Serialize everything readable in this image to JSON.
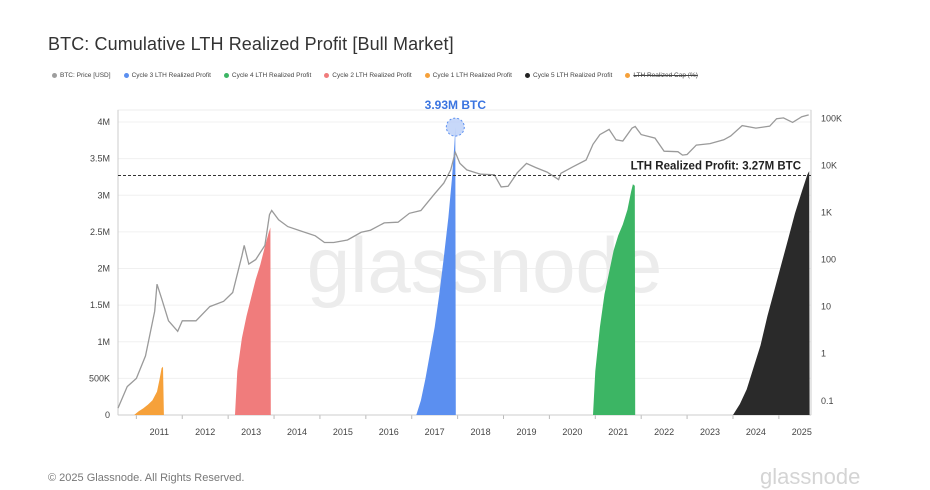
{
  "title": "BTC: Cumulative LTH Realized Profit [Bull Market]",
  "legend": [
    {
      "label": "BTC: Price [USD]",
      "color": "#9e9e9e"
    },
    {
      "label": "Cycle 3 LTH Realized Profit",
      "color": "#5b8ff0"
    },
    {
      "label": "Cycle 4 LTH Realized Profit",
      "color": "#3cb564"
    },
    {
      "label": "Cycle 2 LTH Realized Profit",
      "color": "#f07c7c"
    },
    {
      "label": "Cycle 1 LTH Realized Profit",
      "color": "#f6a13a"
    },
    {
      "label": "Cycle 5 LTH Realized Profit",
      "color": "#222222"
    },
    {
      "label": "LTH Realized Cap (%)",
      "color": "#f6a13a",
      "struck": true
    }
  ],
  "annotations": {
    "peak_label": "3.93M BTC",
    "threshold_label": "LTH Realized Profit: 3.27M BTC"
  },
  "watermark": "glassnode",
  "footer": {
    "copyright": "© 2025 Glassnode. All Rights Reserved.",
    "logo": "glassnode"
  },
  "chart_data": {
    "type": "area",
    "title": "BTC: Cumulative LTH Realized Profit [Bull Market]",
    "x_ticks": [
      "2011",
      "2012",
      "2013",
      "2014",
      "2015",
      "2016",
      "2017",
      "2018",
      "2019",
      "2020",
      "2021",
      "2022",
      "2023",
      "2024",
      "2025"
    ],
    "y_left_ticks": [
      "0",
      "500K",
      "1M",
      "1.5M",
      "2M",
      "2.5M",
      "3M",
      "3.5M",
      "4M"
    ],
    "y_left_range": [
      0,
      4000000
    ],
    "y_right_ticks": [
      "0.1",
      "1",
      "10",
      "100",
      "1K",
      "10K",
      "100K"
    ],
    "y_right_scale": "log",
    "y_right_range": [
      0.05,
      150000
    ],
    "x_range": [
      2010.6,
      2025.7
    ],
    "threshold": 3270000,
    "peak": {
      "x": 2017.95,
      "y": 3930000
    },
    "series": [
      {
        "name": "Cycle 1 LTH Realized Profit",
        "color": "#f6a13a",
        "points": [
          [
            2010.95,
            0
          ],
          [
            2011.05,
            50000
          ],
          [
            2011.15,
            90000
          ],
          [
            2011.25,
            140000
          ],
          [
            2011.35,
            200000
          ],
          [
            2011.45,
            320000
          ],
          [
            2011.5,
            470000
          ],
          [
            2011.55,
            640000
          ],
          [
            2011.58,
            660000
          ],
          [
            2011.6,
            0
          ]
        ]
      },
      {
        "name": "Cycle 2 LTH Realized Profit",
        "color": "#f07c7c",
        "points": [
          [
            2013.15,
            0
          ],
          [
            2013.2,
            600000
          ],
          [
            2013.3,
            1050000
          ],
          [
            2013.4,
            1350000
          ],
          [
            2013.5,
            1600000
          ],
          [
            2013.6,
            1850000
          ],
          [
            2013.7,
            2050000
          ],
          [
            2013.8,
            2300000
          ],
          [
            2013.88,
            2480000
          ],
          [
            2013.92,
            2560000
          ],
          [
            2013.93,
            0
          ]
        ]
      },
      {
        "name": "Cycle 3 LTH Realized Profit",
        "color": "#5b8ff0",
        "points": [
          [
            2017.1,
            0
          ],
          [
            2017.2,
            200000
          ],
          [
            2017.3,
            500000
          ],
          [
            2017.4,
            850000
          ],
          [
            2017.5,
            1200000
          ],
          [
            2017.6,
            1650000
          ],
          [
            2017.7,
            2150000
          ],
          [
            2017.8,
            2700000
          ],
          [
            2017.88,
            3250000
          ],
          [
            2017.93,
            3700000
          ],
          [
            2017.95,
            3930000
          ],
          [
            2017.96,
            0
          ]
        ]
      },
      {
        "name": "Cycle 4 LTH Realized Profit",
        "color": "#3cb564",
        "points": [
          [
            2020.95,
            0
          ],
          [
            2021.0,
            600000
          ],
          [
            2021.1,
            1200000
          ],
          [
            2021.2,
            1650000
          ],
          [
            2021.3,
            1950000
          ],
          [
            2021.4,
            2250000
          ],
          [
            2021.5,
            2450000
          ],
          [
            2021.6,
            2600000
          ],
          [
            2021.7,
            2800000
          ],
          [
            2021.78,
            3050000
          ],
          [
            2021.82,
            3150000
          ],
          [
            2021.86,
            3130000
          ],
          [
            2021.87,
            0
          ]
        ]
      },
      {
        "name": "Cycle 5 LTH Realized Profit",
        "color": "#2a2a2a",
        "points": [
          [
            2024.0,
            0
          ],
          [
            2024.15,
            150000
          ],
          [
            2024.3,
            350000
          ],
          [
            2024.45,
            650000
          ],
          [
            2024.6,
            950000
          ],
          [
            2024.75,
            1350000
          ],
          [
            2024.9,
            1700000
          ],
          [
            2025.05,
            2050000
          ],
          [
            2025.2,
            2400000
          ],
          [
            2025.35,
            2750000
          ],
          [
            2025.5,
            3050000
          ],
          [
            2025.62,
            3280000
          ],
          [
            2025.66,
            3330000
          ],
          [
            2025.67,
            0
          ]
        ]
      },
      {
        "name": "BTC: Price [USD]",
        "color": "#9a9a9a",
        "axis": "right",
        "points": [
          [
            2010.6,
            0.07
          ],
          [
            2010.8,
            0.2
          ],
          [
            2011.0,
            0.3
          ],
          [
            2011.2,
            0.9
          ],
          [
            2011.4,
            8
          ],
          [
            2011.45,
            30
          ],
          [
            2011.55,
            15
          ],
          [
            2011.7,
            5
          ],
          [
            2011.9,
            3
          ],
          [
            2012.0,
            5
          ],
          [
            2012.3,
            5
          ],
          [
            2012.6,
            10
          ],
          [
            2012.9,
            13
          ],
          [
            2013.1,
            20
          ],
          [
            2013.3,
            120
          ],
          [
            2013.35,
            200
          ],
          [
            2013.45,
            80
          ],
          [
            2013.6,
            100
          ],
          [
            2013.8,
            200
          ],
          [
            2013.9,
            900
          ],
          [
            2013.95,
            1100
          ],
          [
            2014.1,
            700
          ],
          [
            2014.3,
            500
          ],
          [
            2014.6,
            400
          ],
          [
            2014.9,
            320
          ],
          [
            2015.1,
            230
          ],
          [
            2015.3,
            230
          ],
          [
            2015.6,
            260
          ],
          [
            2015.9,
            380
          ],
          [
            2016.1,
            420
          ],
          [
            2016.4,
            600
          ],
          [
            2016.7,
            620
          ],
          [
            2016.95,
            960
          ],
          [
            2017.2,
            1100
          ],
          [
            2017.5,
            2500
          ],
          [
            2017.7,
            4200
          ],
          [
            2017.85,
            8000
          ],
          [
            2017.95,
            19000
          ],
          [
            2018.05,
            11000
          ],
          [
            2018.2,
            8000
          ],
          [
            2018.5,
            6500
          ],
          [
            2018.8,
            6300
          ],
          [
            2018.95,
            3500
          ],
          [
            2019.1,
            3600
          ],
          [
            2019.3,
            7000
          ],
          [
            2019.5,
            11000
          ],
          [
            2019.7,
            9000
          ],
          [
            2019.95,
            7200
          ],
          [
            2020.2,
            5000
          ],
          [
            2020.25,
            6800
          ],
          [
            2020.5,
            9200
          ],
          [
            2020.8,
            13000
          ],
          [
            2020.95,
            28000
          ],
          [
            2021.1,
            45000
          ],
          [
            2021.3,
            58000
          ],
          [
            2021.45,
            35000
          ],
          [
            2021.6,
            33000
          ],
          [
            2021.8,
            62000
          ],
          [
            2021.87,
            67000
          ],
          [
            2022.0,
            45000
          ],
          [
            2022.3,
            38000
          ],
          [
            2022.5,
            20000
          ],
          [
            2022.8,
            19500
          ],
          [
            2022.9,
            16500
          ],
          [
            2023.0,
            17000
          ],
          [
            2023.2,
            27000
          ],
          [
            2023.5,
            29000
          ],
          [
            2023.8,
            35000
          ],
          [
            2023.95,
            42000
          ],
          [
            2024.2,
            70000
          ],
          [
            2024.5,
            62000
          ],
          [
            2024.8,
            68000
          ],
          [
            2024.95,
            98000
          ],
          [
            2025.1,
            102000
          ],
          [
            2025.3,
            82000
          ],
          [
            2025.5,
            108000
          ],
          [
            2025.65,
            118000
          ]
        ]
      }
    ]
  }
}
